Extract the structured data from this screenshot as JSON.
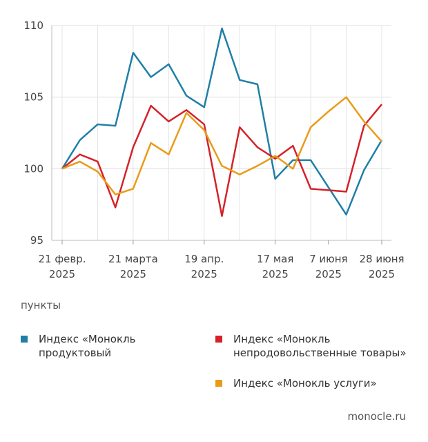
{
  "chart_data": {
    "type": "line",
    "categories": [
      "21 февр.\n2025",
      null,
      null,
      null,
      "21 марта\n2025",
      null,
      null,
      null,
      "19 апр.\n2025",
      null,
      null,
      null,
      "17 мая\n2025",
      null,
      null,
      "7 июня\n2025",
      null,
      null,
      "28 июня\n2025"
    ],
    "series": [
      {
        "name": "Индекс «Монокль продуктовый",
        "color": "#1f7fa6",
        "values": [
          100,
          102,
          103.1,
          103,
          108.1,
          106.4,
          107.3,
          105.1,
          104.3,
          109.8,
          106.2,
          105.9,
          99.3,
          100.6,
          100.6,
          98.7,
          96.8,
          99.9,
          102
        ]
      },
      {
        "name": "Индекс «Монокль непродовольственные товары»",
        "color": "#d42229",
        "values": [
          100,
          101,
          100.5,
          97.3,
          101.5,
          104.4,
          103.3,
          104.1,
          103.1,
          96.7,
          102.9,
          101.5,
          100.7,
          101.6,
          98.6,
          98.5,
          98.4,
          103,
          104.5
        ]
      },
      {
        "name": "Индекс «Монокль услуги»",
        "color": "#e99b18",
        "values": [
          100,
          100.5,
          99.8,
          98.2,
          98.6,
          101.8,
          101,
          103.9,
          102.7,
          100.2,
          99.6,
          100.2,
          100.9,
          100,
          102.9,
          104,
          105,
          103.3,
          101.9
        ]
      }
    ],
    "ylim": [
      95,
      110
    ],
    "yticks": [
      95,
      100,
      105,
      110
    ],
    "grid": true,
    "y_label": "пункты",
    "source": "monocle.ru"
  }
}
